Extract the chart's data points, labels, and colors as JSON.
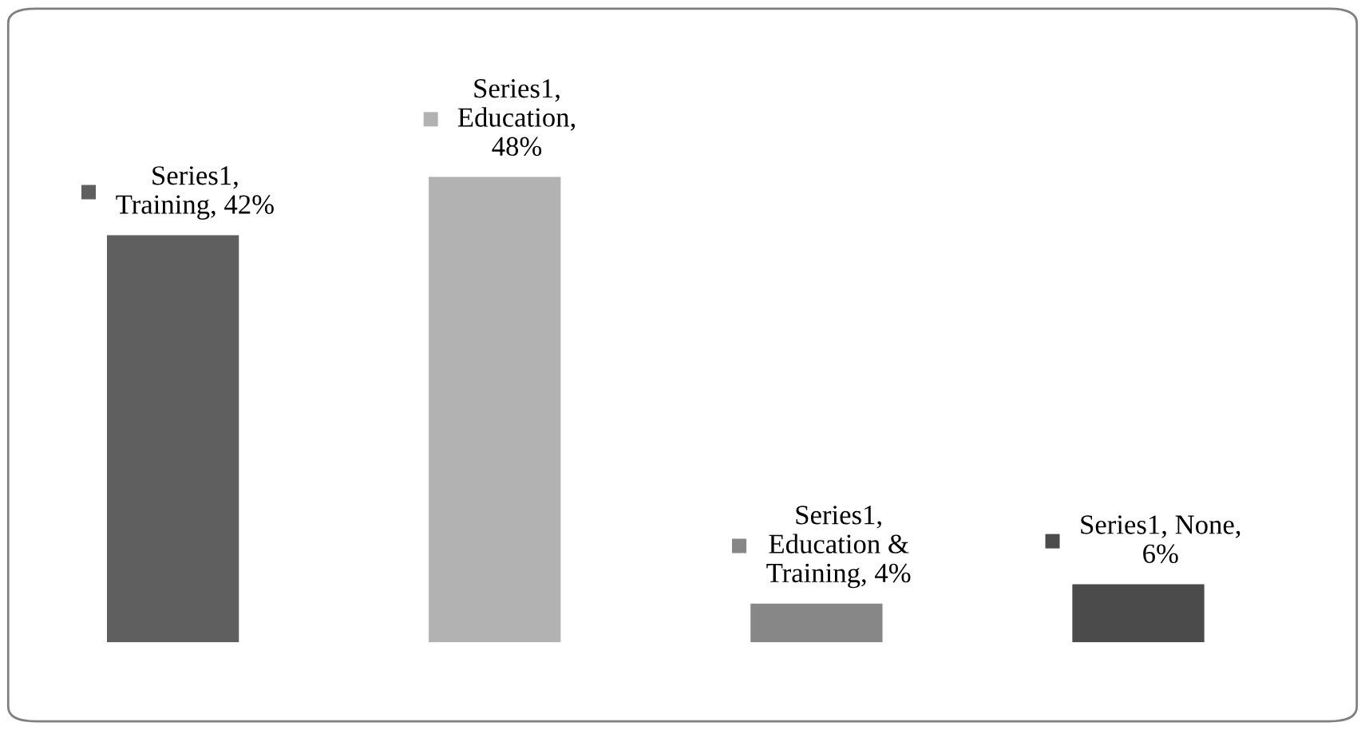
{
  "chart_data": {
    "type": "bar",
    "categories": [
      null,
      null,
      null,
      null
    ],
    "values": [
      42,
      48,
      4,
      6
    ],
    "colors": [
      "#5f5f5f",
      "#b2b2b2",
      "#878787",
      "#4b4b4b"
    ],
    "value_labels": [
      "Series1,\nTraining, 42%",
      "Series1,\nEducation,\n48%",
      "Series1,\nEducation &\nTraining, 4%",
      "Series1, None,\n6%"
    ],
    "grid": false,
    "legend": false
  }
}
